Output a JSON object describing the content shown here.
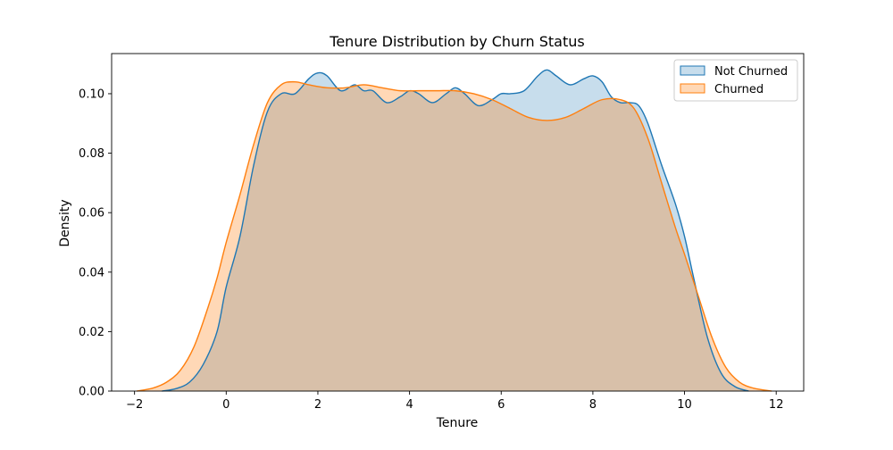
{
  "chart_data": {
    "type": "area",
    "title": "Tenure Distribution by Churn Status",
    "xlabel": "Tenure",
    "ylabel": "Density",
    "xlim": [
      -2.5,
      12.6
    ],
    "ylim": [
      0,
      0.1135
    ],
    "xticks": [
      -2,
      0,
      2,
      4,
      6,
      8,
      10,
      12
    ],
    "xtick_labels": [
      "−2",
      "0",
      "2",
      "4",
      "6",
      "8",
      "10",
      "12"
    ],
    "yticks": [
      0,
      0.02,
      0.04,
      0.06,
      0.08,
      0.1
    ],
    "ytick_labels": [
      "0.00",
      "0.02",
      "0.04",
      "0.06",
      "0.08",
      "0.10"
    ],
    "grid": false,
    "legend_position": "upper-right",
    "series": [
      {
        "name": "Not Churned",
        "color": "#1f77b4",
        "fill_opacity": 0.25,
        "x": [
          -1.4,
          -1.1,
          -0.8,
          -0.5,
          -0.2,
          0,
          0.3,
          0.6,
          0.9,
          1.2,
          1.5,
          1.8,
          2.0,
          2.2,
          2.5,
          2.8,
          3.0,
          3.2,
          3.5,
          3.8,
          4.0,
          4.2,
          4.5,
          4.8,
          5.0,
          5.2,
          5.5,
          5.8,
          6.0,
          6.2,
          6.5,
          6.8,
          7.0,
          7.2,
          7.5,
          7.8,
          8.0,
          8.2,
          8.4,
          8.6,
          8.8,
          9.0,
          9.2,
          9.5,
          9.8,
          10.0,
          10.2,
          10.5,
          10.8,
          11.1,
          11.4
        ],
        "y": [
          0.0,
          0.0008,
          0.003,
          0.009,
          0.02,
          0.035,
          0.052,
          0.076,
          0.094,
          0.1,
          0.1,
          0.105,
          0.107,
          0.106,
          0.101,
          0.103,
          0.101,
          0.101,
          0.097,
          0.099,
          0.101,
          0.1,
          0.097,
          0.1,
          0.102,
          0.1,
          0.096,
          0.098,
          0.1,
          0.1,
          0.101,
          0.106,
          0.108,
          0.106,
          0.103,
          0.105,
          0.106,
          0.104,
          0.099,
          0.097,
          0.097,
          0.096,
          0.09,
          0.076,
          0.063,
          0.052,
          0.038,
          0.018,
          0.006,
          0.0015,
          0.0
        ]
      },
      {
        "name": "Churned",
        "color": "#ff7f0e",
        "fill_opacity": 0.3,
        "x": [
          -1.95,
          -1.6,
          -1.3,
          -1.0,
          -0.7,
          -0.4,
          -0.2,
          0,
          0.3,
          0.6,
          0.9,
          1.2,
          1.5,
          1.8,
          2.2,
          2.6,
          3.0,
          3.4,
          3.8,
          4.2,
          4.6,
          5.0,
          5.4,
          5.8,
          6.2,
          6.6,
          7.0,
          7.4,
          7.8,
          8.2,
          8.6,
          8.9,
          9.2,
          9.5,
          9.8,
          10.0,
          10.3,
          10.6,
          10.9,
          11.2,
          11.5,
          11.9
        ],
        "y": [
          0.0,
          0.001,
          0.003,
          0.007,
          0.015,
          0.028,
          0.038,
          0.05,
          0.066,
          0.083,
          0.097,
          0.103,
          0.104,
          0.103,
          0.102,
          0.102,
          0.103,
          0.102,
          0.101,
          0.101,
          0.101,
          0.101,
          0.1,
          0.098,
          0.095,
          0.092,
          0.091,
          0.092,
          0.095,
          0.098,
          0.098,
          0.095,
          0.085,
          0.07,
          0.055,
          0.046,
          0.032,
          0.018,
          0.008,
          0.003,
          0.001,
          0.0
        ]
      }
    ]
  }
}
